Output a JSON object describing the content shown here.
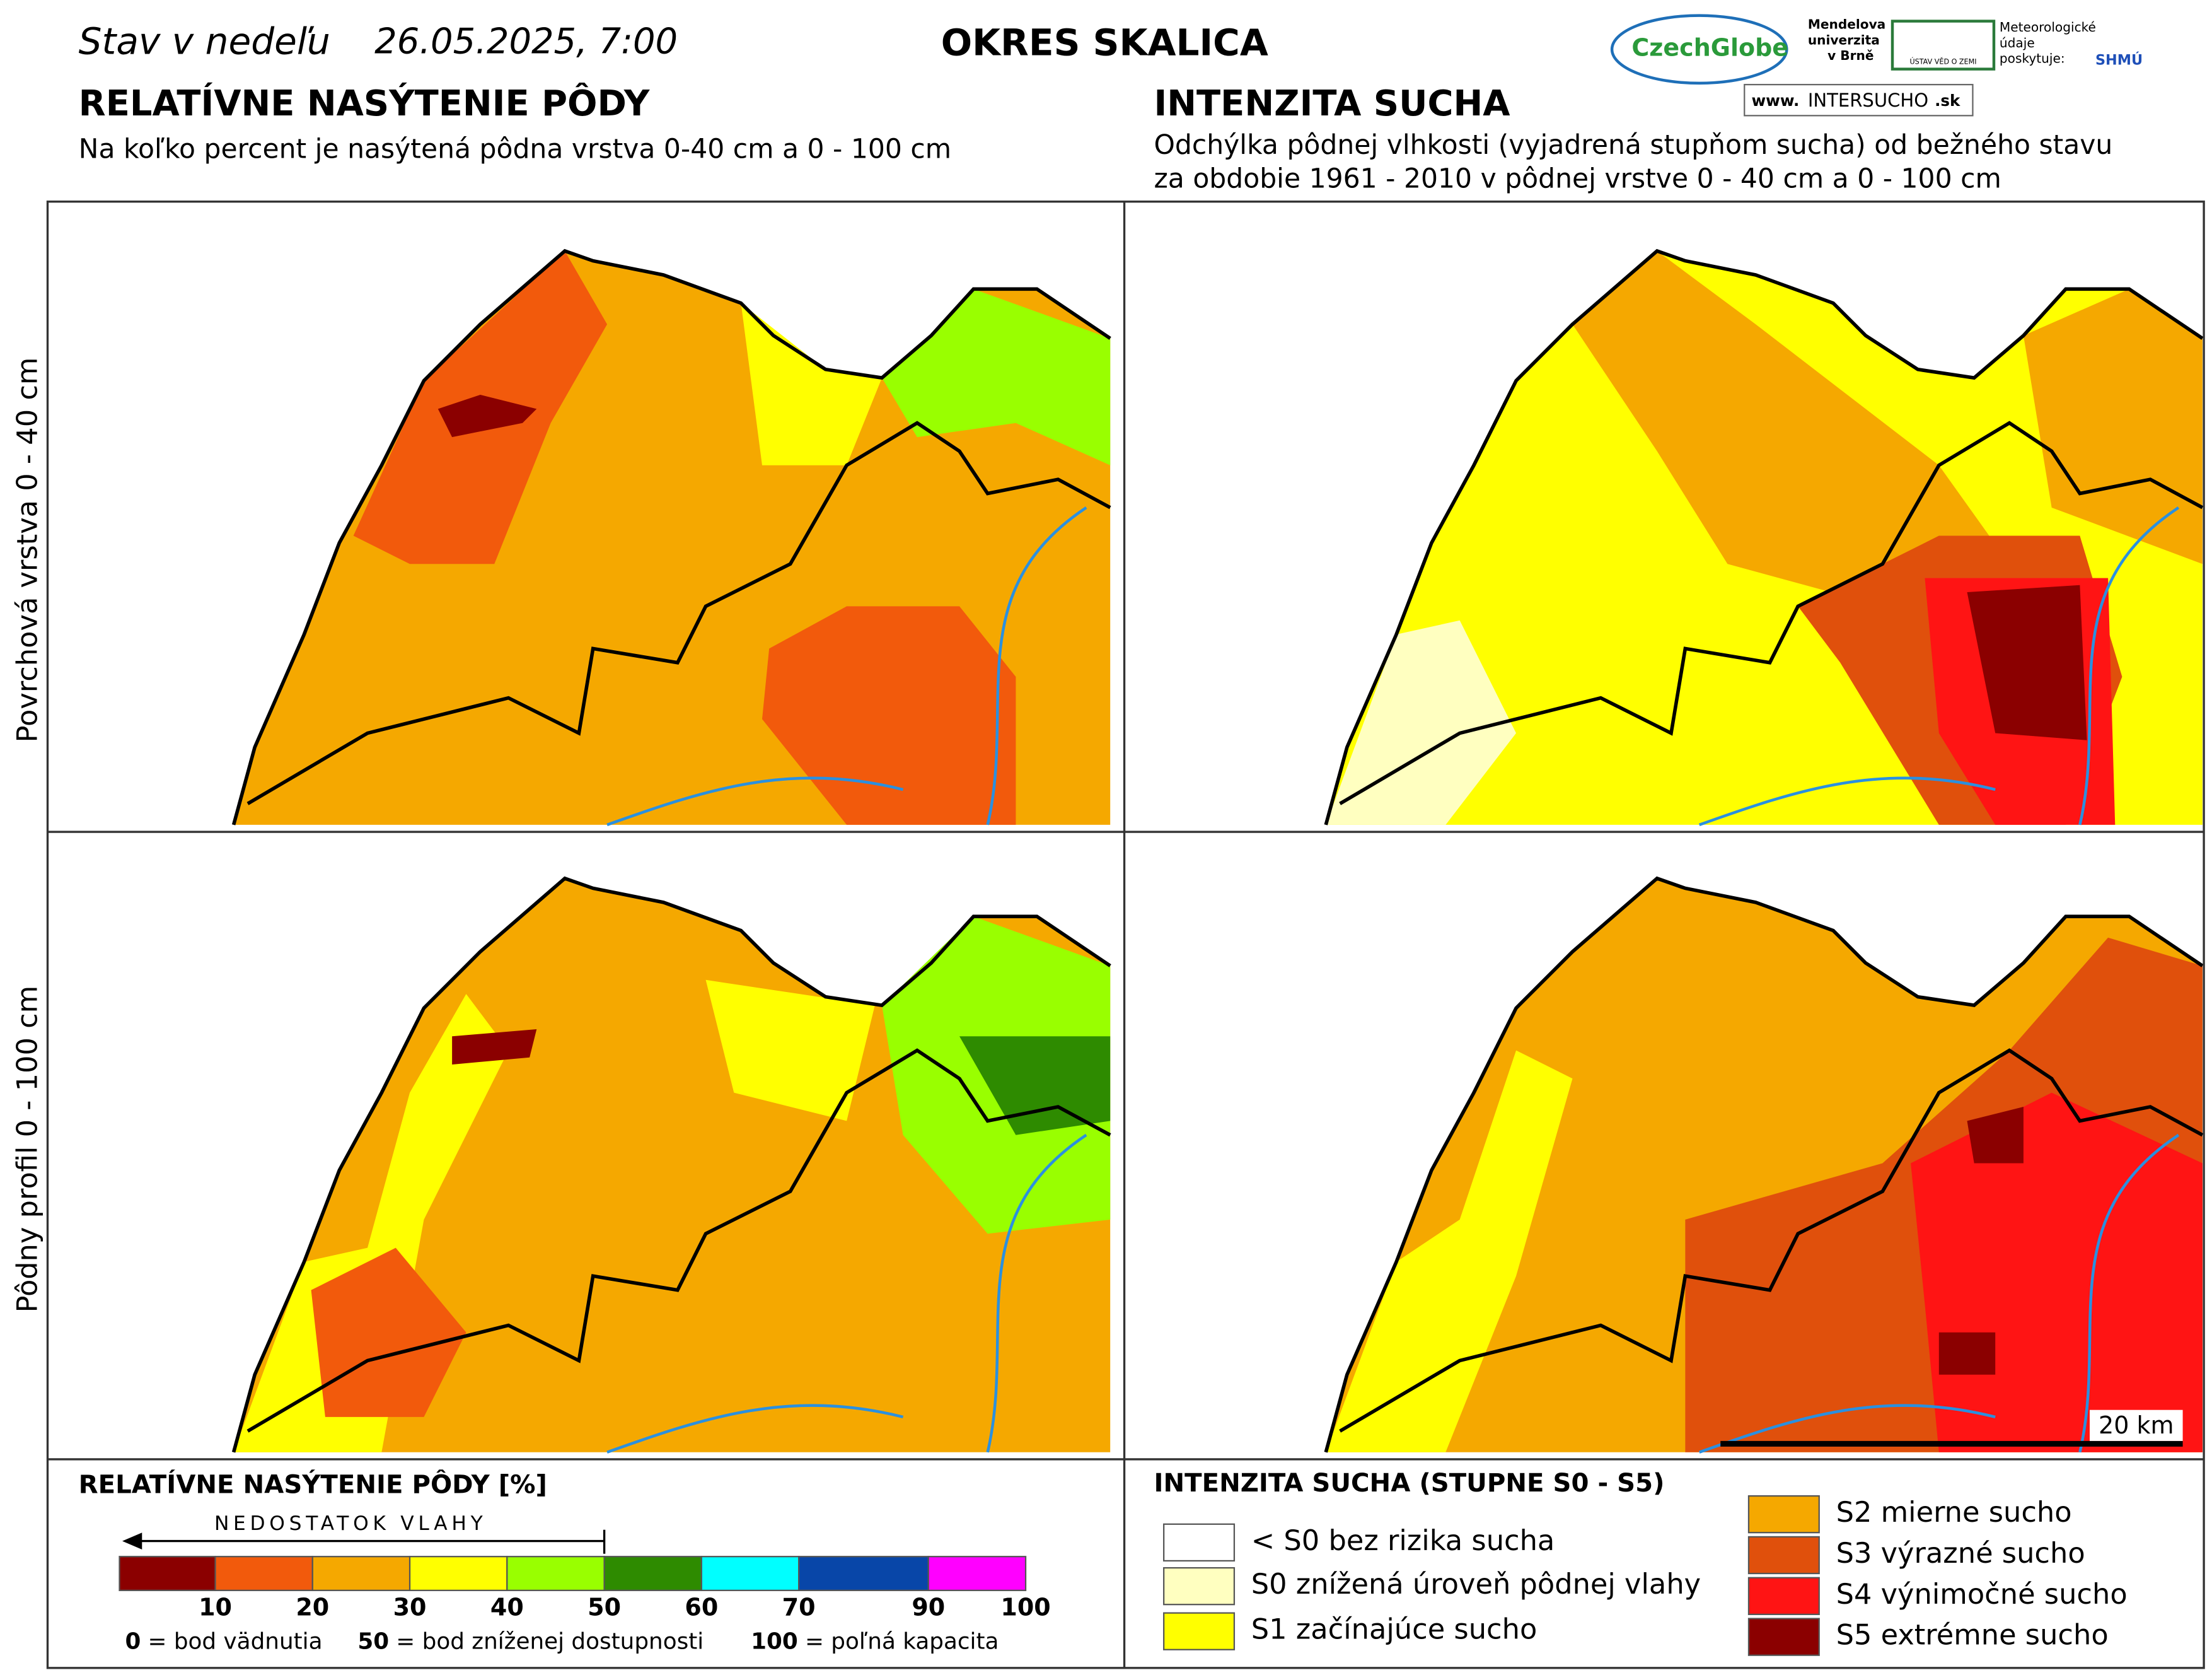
{
  "header": {
    "prefix": "Stav v nedeľu",
    "date": "26.05.2025, 7:00",
    "district": "OKRES  SKALICA",
    "logos": [
      "CzechGlobe",
      "Mendelova",
      "univerzita",
      "v Brně",
      "ÚSTAV VĚD O ZEMI",
      "Meteorologické",
      "údaje",
      "poskytuje:",
      "SHMÚ",
      "www.",
      "INTERSUCHO",
      ".sk"
    ]
  },
  "left": {
    "title": "RELATÍVNE NASÝTENIE PÔDY",
    "subtitle": "Na koľko percent je nasýtená pôdna vrstva 0-40 cm a 0 - 100 cm"
  },
  "right": {
    "title": "INTENZITA SUCHA",
    "subtitle": [
      "Odchýlka pôdnej vlhkosti (vyjadrená stupňom sucha) od bežného stavu",
      "za obdobie 1961 - 2010 v pôdnej vrstve 0 - 40 cm a 0 - 100 cm"
    ]
  },
  "rows": [
    "Povrchová vrstva 0 - 40 cm",
    "Pôdny profil 0 - 100 cm"
  ],
  "scale_bar": "20 km",
  "legend_left": {
    "title": "RELATÍVNE NASÝTENIE PÔDY [%]",
    "arrow": "NEDOSTATOK VLAHY",
    "colors": [
      "#8b0000",
      "#f25a0c",
      "#f5a800",
      "#ffff00",
      "#99ff00",
      "#2e8b00",
      "#00ffff",
      "#0846a8",
      "#ff00ff"
    ],
    "ticks": [
      10,
      20,
      30,
      40,
      50,
      60,
      70,
      90,
      100
    ],
    "notes": [
      {
        "value": 0,
        "text": "= bod vädnutia"
      },
      {
        "value": 50,
        "text": "= bod zníženej dostupnosti"
      },
      {
        "value": 100,
        "text": "= poľná kapacita"
      }
    ]
  },
  "legend_right": {
    "title": "INTENZITA SUCHA (STUPNE S0 - S5)",
    "items": [
      {
        "label": "< S0 bez rizika sucha",
        "color": "#ffffff"
      },
      {
        "label": "S0 znížená úroveň pôdnej vlahy",
        "color": "#ffffc0"
      },
      {
        "label": "S1 začínajúce sucho",
        "color": "#ffff00"
      },
      {
        "label": "S2 mierne sucho",
        "color": "#f5a800"
      },
      {
        "label": "S3 výrazné sucho",
        "color": "#e0500c"
      },
      {
        "label": "S4 výnimočné sucho",
        "color": "#ff1414"
      },
      {
        "label": "S5 extrémne sucho",
        "color": "#8b0000"
      }
    ]
  }
}
